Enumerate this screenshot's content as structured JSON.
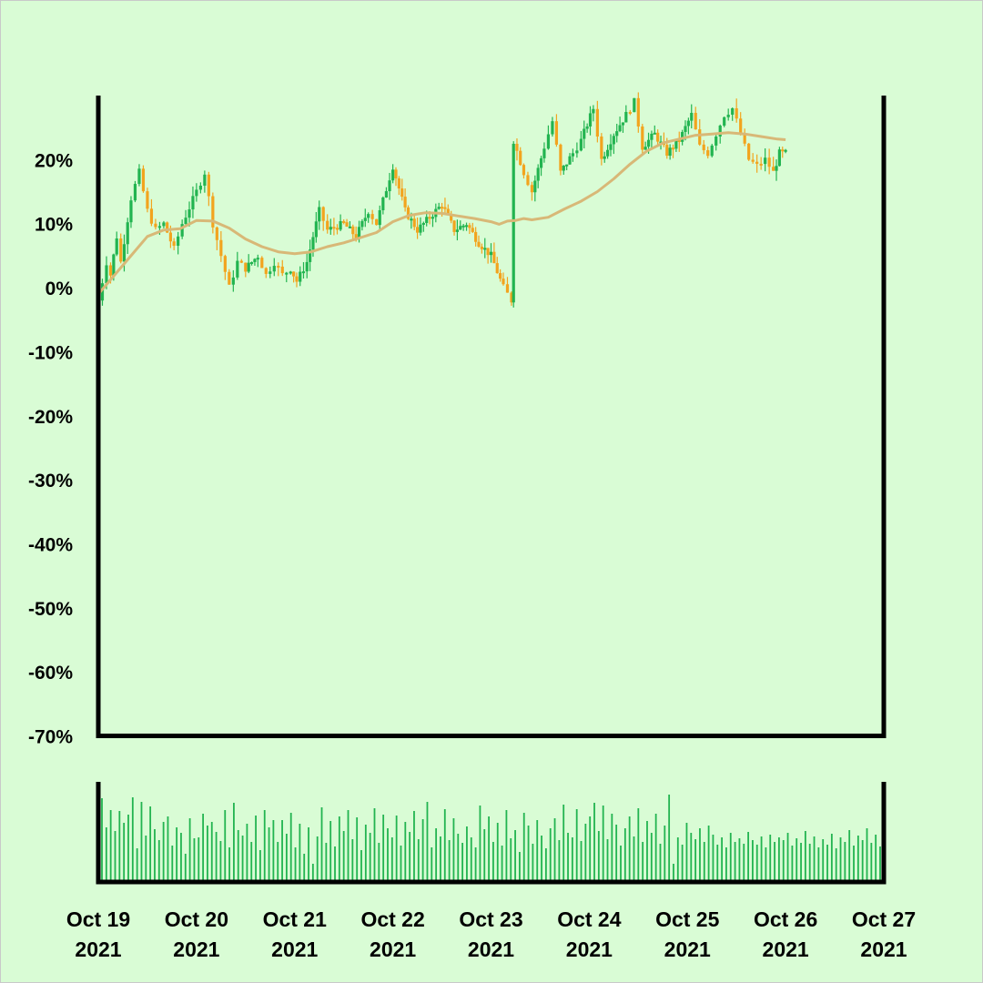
{
  "colors": {
    "background": "#d9fcd5",
    "up": "#22b450",
    "down": "#f2a41e",
    "moving_average": "#d8b877",
    "volume": "#22b450",
    "axis": "#000000"
  },
  "chart_data": {
    "type": "candlestick",
    "title": "",
    "xlabel": "",
    "ylabel": "",
    "y_unit": "%",
    "ylim": [
      -70,
      30
    ],
    "y_ticks": [
      20,
      10,
      0,
      -10,
      -20,
      -30,
      -40,
      -50,
      -60,
      -70
    ],
    "y_tick_labels": [
      "20%",
      "10%",
      "0%",
      "-10%",
      "-20%",
      "-30%",
      "-40%",
      "-50%",
      "-60%",
      "-70%"
    ],
    "x_range": [
      "2021-10-19",
      "2021-10-27"
    ],
    "x_ticks": [
      "2021-10-19",
      "2021-10-20",
      "2021-10-21",
      "2021-10-22",
      "2021-10-23",
      "2021-10-24",
      "2021-10-25",
      "2021-10-26",
      "2021-10-27"
    ],
    "x_tick_labels": [
      [
        "Oct 19",
        "2021"
      ],
      [
        "Oct 20",
        "2021"
      ],
      [
        "Oct 21",
        "2021"
      ],
      [
        "Oct 22",
        "2021"
      ],
      [
        "Oct 23",
        "2021"
      ],
      [
        "Oct 24",
        "2021"
      ],
      [
        "Oct 25",
        "2021"
      ],
      [
        "Oct 26",
        "2021"
      ],
      [
        "Oct 27",
        "2021"
      ]
    ],
    "close_path": [
      [
        "2021-10-19T00:00",
        -2.0
      ],
      [
        "2021-10-19T02:00",
        4.0
      ],
      [
        "2021-10-19T03:00",
        2.0
      ],
      [
        "2021-10-19T04:30",
        8.0
      ],
      [
        "2021-10-19T05:30",
        4.0
      ],
      [
        "2021-10-19T08:00",
        14.0
      ],
      [
        "2021-10-19T10:00",
        18.0
      ],
      [
        "2021-10-19T12:00",
        12.0
      ],
      [
        "2021-10-19T14:00",
        9.0
      ],
      [
        "2021-10-19T16:00",
        10.0
      ],
      [
        "2021-10-19T18:30",
        6.0
      ],
      [
        "2021-10-19T20:30",
        10.0
      ],
      [
        "2021-10-20T00:00",
        15.0
      ],
      [
        "2021-10-20T02:00",
        18.0
      ],
      [
        "2021-10-20T04:00",
        10.0
      ],
      [
        "2021-10-20T06:00",
        5.0
      ],
      [
        "2021-10-20T08:00",
        0.0
      ],
      [
        "2021-10-20T10:00",
        4.0
      ],
      [
        "2021-10-20T12:00",
        3.0
      ],
      [
        "2021-10-20T15:00",
        5.0
      ],
      [
        "2021-10-20T17:00",
        2.0
      ],
      [
        "2021-10-20T19:00",
        4.0
      ],
      [
        "2021-10-20T21:00",
        2.0
      ],
      [
        "2021-10-20T23:00",
        3.0
      ],
      [
        "2021-10-21T00:30",
        1.0
      ],
      [
        "2021-10-21T03:00",
        4.0
      ],
      [
        "2021-10-21T06:00",
        12.0
      ],
      [
        "2021-10-21T08:00",
        9.0
      ],
      [
        "2021-10-21T12:00",
        10.0
      ],
      [
        "2021-10-21T15:00",
        8.0
      ],
      [
        "2021-10-21T18:00",
        12.0
      ],
      [
        "2021-10-21T20:00",
        10.0
      ],
      [
        "2021-10-22T00:00",
        19.0
      ],
      [
        "2021-10-22T03:00",
        12.0
      ],
      [
        "2021-10-22T06:00",
        9.0
      ],
      [
        "2021-10-22T09:00",
        11.0
      ],
      [
        "2021-10-22T12:00",
        13.0
      ],
      [
        "2021-10-22T15:00",
        9.0
      ],
      [
        "2021-10-22T18:00",
        10.0
      ],
      [
        "2021-10-22T21:00",
        7.0
      ],
      [
        "2021-10-23T00:00",
        5.0
      ],
      [
        "2021-10-23T03:00",
        0.0
      ],
      [
        "2021-10-23T05:00",
        -2.0
      ],
      [
        "2021-10-23T05:30",
        23.0
      ],
      [
        "2021-10-23T08:00",
        18.0
      ],
      [
        "2021-10-23T10:00",
        15.0
      ],
      [
        "2021-10-23T13:00",
        22.0
      ],
      [
        "2021-10-23T15:00",
        26.0
      ],
      [
        "2021-10-23T17:00",
        18.0
      ],
      [
        "2021-10-23T20:00",
        21.0
      ],
      [
        "2021-10-23T22:00",
        23.0
      ],
      [
        "2021-10-24T01:00",
        28.0
      ],
      [
        "2021-10-24T03:00",
        20.0
      ],
      [
        "2021-10-24T06:00",
        24.0
      ],
      [
        "2021-10-24T09:00",
        27.0
      ],
      [
        "2021-10-24T11:00",
        29.0
      ],
      [
        "2021-10-24T13:00",
        22.0
      ],
      [
        "2021-10-24T16:00",
        24.0
      ],
      [
        "2021-10-24T19:00",
        21.0
      ],
      [
        "2021-10-24T22:00",
        23.0
      ],
      [
        "2021-10-25T01:00",
        27.0
      ],
      [
        "2021-10-25T03:00",
        22.0
      ],
      [
        "2021-10-25T05:00",
        21.0
      ],
      [
        "2021-10-25T07:00",
        24.0
      ],
      [
        "2021-10-25T09:00",
        27.0
      ],
      [
        "2021-10-25T11:00",
        28.0
      ],
      [
        "2021-10-25T13:00",
        24.0
      ],
      [
        "2021-10-25T15:00",
        20.0
      ],
      [
        "2021-10-25T17:00",
        19.0
      ],
      [
        "2021-10-25T19:00",
        20.0
      ],
      [
        "2021-10-25T21:00",
        18.0
      ],
      [
        "2021-10-25T22:30",
        21.0
      ],
      [
        "2021-10-26T00:00",
        21.0
      ]
    ],
    "moving_average": [
      [
        "2021-10-19T00:00",
        -1.0
      ],
      [
        "2021-10-19T04:00",
        2.0
      ],
      [
        "2021-10-19T08:00",
        5.0
      ],
      [
        "2021-10-19T12:00",
        8.0
      ],
      [
        "2021-10-19T16:00",
        9.0
      ],
      [
        "2021-10-19T20:00",
        9.2
      ],
      [
        "2021-10-20T00:00",
        10.5
      ],
      [
        "2021-10-20T04:00",
        10.4
      ],
      [
        "2021-10-20T08:00",
        9.3
      ],
      [
        "2021-10-20T12:00",
        7.6
      ],
      [
        "2021-10-20T16:00",
        6.4
      ],
      [
        "2021-10-20T20:00",
        5.6
      ],
      [
        "2021-10-21T00:00",
        5.3
      ],
      [
        "2021-10-21T04:00",
        5.6
      ],
      [
        "2021-10-21T08:00",
        6.4
      ],
      [
        "2021-10-21T12:00",
        7.0
      ],
      [
        "2021-10-21T16:00",
        7.8
      ],
      [
        "2021-10-21T20:00",
        8.6
      ],
      [
        "2021-10-22T00:00",
        10.3
      ],
      [
        "2021-10-22T04:00",
        11.3
      ],
      [
        "2021-10-22T08:00",
        11.7
      ],
      [
        "2021-10-22T12:00",
        11.6
      ],
      [
        "2021-10-22T16:00",
        11.2
      ],
      [
        "2021-10-22T20:00",
        10.8
      ],
      [
        "2021-10-23T00:00",
        10.3
      ],
      [
        "2021-10-23T02:00",
        9.9
      ],
      [
        "2021-10-23T04:00",
        10.4
      ],
      [
        "2021-10-23T06:00",
        10.5
      ],
      [
        "2021-10-23T08:00",
        10.8
      ],
      [
        "2021-10-23T10:00",
        10.6
      ],
      [
        "2021-10-23T14:00",
        11.0
      ],
      [
        "2021-10-23T18:00",
        12.3
      ],
      [
        "2021-10-23T22:00",
        13.5
      ],
      [
        "2021-10-24T02:00",
        15.0
      ],
      [
        "2021-10-24T06:00",
        17.0
      ],
      [
        "2021-10-24T10:00",
        19.3
      ],
      [
        "2021-10-24T14:00",
        21.3
      ],
      [
        "2021-10-24T18:00",
        22.6
      ],
      [
        "2021-10-24T22:00",
        23.2
      ],
      [
        "2021-10-25T02:00",
        23.8
      ],
      [
        "2021-10-25T06:00",
        24.0
      ],
      [
        "2021-10-25T10:00",
        24.2
      ],
      [
        "2021-10-25T14:00",
        24.0
      ],
      [
        "2021-10-25T18:00",
        23.6
      ],
      [
        "2021-10-25T22:00",
        23.2
      ],
      [
        "2021-10-26T00:00",
        23.1
      ]
    ],
    "volume": {
      "scale": "relative",
      "values": [
        0.9,
        0.58,
        0.77,
        0.54,
        0.76,
        0.63,
        0.72,
        0.91,
        0.35,
        0.86,
        0.49,
        0.81,
        0.56,
        0.44,
        0.64,
        0.7,
        0.38,
        0.58,
        0.52,
        0.29,
        0.68,
        0.46,
        0.47,
        0.73,
        0.6,
        0.64,
        0.53,
        0.43,
        0.77,
        0.36,
        0.85,
        0.55,
        0.49,
        0.62,
        0.42,
        0.71,
        0.33,
        0.77,
        0.58,
        0.66,
        0.42,
        0.66,
        0.51,
        0.74,
        0.36,
        0.62,
        0.29,
        0.58,
        0.18,
        0.48,
        0.8,
        0.41,
        0.65,
        0.37,
        0.7,
        0.54,
        0.77,
        0.45,
        0.69,
        0.33,
        0.61,
        0.52,
        0.79,
        0.41,
        0.72,
        0.57,
        0.47,
        0.71,
        0.38,
        0.64,
        0.53,
        0.76,
        0.45,
        0.67,
        0.86,
        0.36,
        0.57,
        0.48,
        0.78,
        0.44,
        0.68,
        0.51,
        0.41,
        0.59,
        0.47,
        0.36,
        0.82,
        0.56,
        0.7,
        0.42,
        0.63,
        0.38,
        0.77,
        0.46,
        0.55,
        0.31,
        0.74,
        0.6,
        0.4,
        0.66,
        0.49,
        0.35,
        0.57,
        0.68,
        0.44,
        0.83,
        0.52,
        0.47,
        0.78,
        0.43,
        0.62,
        0.7,
        0.85,
        0.54,
        0.82,
        0.45,
        0.73,
        0.61,
        0.38,
        0.57,
        0.7,
        0.48,
        0.79,
        0.42,
        0.65,
        0.52,
        0.73,
        0.4,
        0.6,
        0.94,
        0.18,
        0.47,
        0.39,
        0.63,
        0.52,
        0.45,
        0.57,
        0.42,
        0.6,
        0.5,
        0.39,
        0.47,
        0.36,
        0.52,
        0.42,
        0.46,
        0.4,
        0.53,
        0.44,
        0.39,
        0.48,
        0.36,
        0.5,
        0.42,
        0.47,
        0.44,
        0.52,
        0.38,
        0.46,
        0.41,
        0.54,
        0.4,
        0.48,
        0.36,
        0.45,
        0.39,
        0.51,
        0.35,
        0.47,
        0.42,
        0.55,
        0.38,
        0.49,
        0.44,
        0.57,
        0.41,
        0.5,
        0.37
      ]
    }
  }
}
